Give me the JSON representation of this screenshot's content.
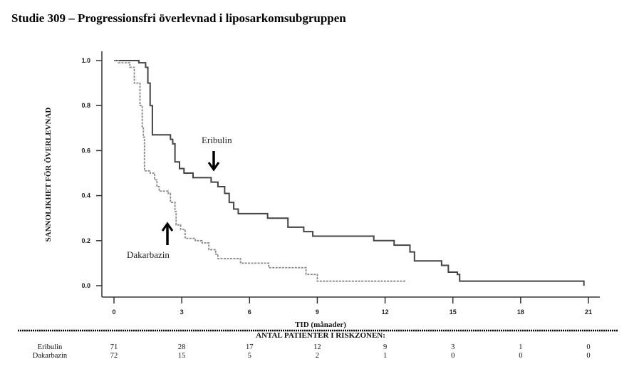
{
  "title": "Studie 309 – Progressionsfri överlevnad i liposarkomsubgruppen",
  "chart_data": {
    "type": "line",
    "subtype": "kaplan-meier-step",
    "title": "Studie 309 – Progressionsfri överlevnad i liposarkomsubgruppen",
    "xlabel": "TID (månader)",
    "ylabel": "SANNOLIKHET FÖR ÖVERLEVNAD",
    "xlim": [
      0,
      21
    ],
    "ylim": [
      0,
      1
    ],
    "xticks": [
      0,
      3,
      6,
      9,
      12,
      15,
      18,
      21
    ],
    "yticks": [
      "0.0",
      "0.2",
      "0.4",
      "0.6",
      "0.8",
      "1.0"
    ],
    "series": [
      {
        "name": "Eribulin",
        "style": "solid",
        "color": "#444444",
        "x": [
          0,
          1.1,
          1.4,
          1.5,
          1.6,
          1.7,
          2.5,
          2.6,
          2.7,
          2.9,
          3.1,
          3.5,
          4.3,
          4.6,
          4.9,
          5.1,
          5.3,
          5.5,
          6.8,
          7.7,
          8.4,
          8.8,
          11.5,
          12.4,
          13.1,
          13.3,
          14.5,
          14.8,
          15.2,
          15.3,
          20.8
        ],
        "y": [
          1.0,
          0.99,
          0.97,
          0.9,
          0.8,
          0.67,
          0.65,
          0.63,
          0.55,
          0.52,
          0.5,
          0.48,
          0.46,
          0.44,
          0.41,
          0.37,
          0.34,
          0.32,
          0.3,
          0.26,
          0.24,
          0.22,
          0.2,
          0.18,
          0.15,
          0.11,
          0.09,
          0.06,
          0.05,
          0.02,
          0.0
        ]
      },
      {
        "name": "Dakarbazin",
        "style": "dashed",
        "color": "#888888",
        "x": [
          0,
          0.2,
          0.7,
          0.9,
          1.15,
          1.25,
          1.3,
          1.35,
          1.6,
          1.8,
          1.9,
          2.0,
          2.4,
          2.5,
          2.7,
          2.75,
          2.95,
          3.15,
          3.6,
          3.9,
          4.2,
          4.5,
          4.6,
          5.6,
          6.85,
          8.5,
          9.0,
          12.9
        ],
        "y": [
          1.0,
          0.99,
          0.97,
          0.9,
          0.8,
          0.7,
          0.66,
          0.51,
          0.5,
          0.47,
          0.44,
          0.42,
          0.41,
          0.37,
          0.33,
          0.27,
          0.25,
          0.21,
          0.2,
          0.19,
          0.16,
          0.14,
          0.12,
          0.1,
          0.08,
          0.05,
          0.02,
          0.02
        ]
      }
    ],
    "annotations": [
      "Eribulin",
      "Dakarbazin"
    ],
    "risk_table": {
      "header": "ANTAL PATIENTER I RISKZONEN:",
      "rows": [
        {
          "label": "Eribulin",
          "values": [
            "71",
            "28",
            "17",
            "12",
            "9",
            "3",
            "1",
            "0"
          ]
        },
        {
          "label": "Dakarbazin",
          "values": [
            "72",
            "15",
            "5",
            "2",
            "1",
            "0",
            "0",
            "0"
          ]
        }
      ]
    }
  }
}
